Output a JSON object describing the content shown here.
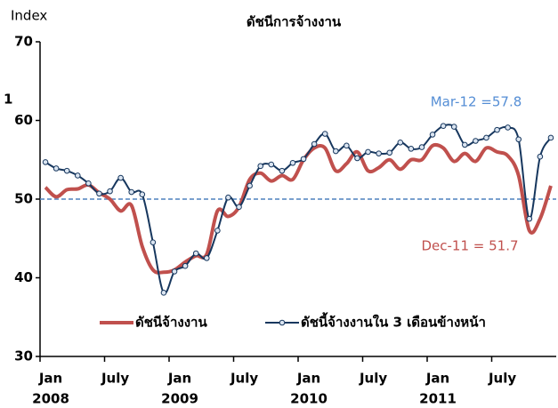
{
  "chart_data": {
    "type": "line",
    "title": "ดัชนีการจ้างงาน",
    "y_label": "Index",
    "side_text": "1",
    "categories": [
      "Jan",
      null,
      null,
      null,
      null,
      null,
      "July",
      null,
      null,
      null,
      null,
      null,
      "Jan",
      null,
      null,
      null,
      null,
      null,
      "July",
      null,
      null,
      null,
      null,
      null,
      "Jan",
      null,
      null,
      null,
      null,
      null,
      "July",
      null,
      null,
      null,
      null,
      null,
      "Jan",
      null,
      null,
      null,
      null,
      null,
      "July",
      null,
      null,
      null,
      null,
      null
    ],
    "years": [
      "2008",
      "2009",
      "2010",
      "2011"
    ],
    "series": [
      {
        "name": "ดัชนีจ้างงาน",
        "color": "#c0504d",
        "markers": false,
        "values": [
          51.5,
          50.3,
          51.2,
          51.3,
          51.8,
          50.8,
          50.0,
          48.5,
          49.2,
          44.0,
          41.0,
          40.7,
          41.0,
          42.0,
          42.8,
          43.0,
          48.5,
          47.8,
          49.0,
          52.5,
          53.3,
          52.3,
          53.0,
          52.5,
          55.0,
          56.5,
          56.5,
          53.6,
          54.5,
          56.0,
          53.6,
          54.0,
          55.0,
          53.8,
          55.0,
          55.0,
          56.8,
          56.5,
          54.8,
          55.8,
          54.8,
          56.5,
          56.0,
          55.5,
          53.0,
          46.0,
          47.5,
          51.7
        ]
      },
      {
        "name": "ดัชนี้จ้างงานใน 3 เดือนข้างหน้า",
        "color": "#17375e",
        "markers": true,
        "values": [
          54.7,
          53.9,
          53.6,
          53.0,
          52.0,
          50.7,
          51.0,
          52.7,
          50.9,
          50.6,
          44.5,
          38.1,
          40.8,
          41.5,
          43.1,
          42.5,
          46.0,
          50.2,
          49.0,
          51.7,
          54.2,
          54.4,
          53.6,
          54.6,
          55.1,
          57.0,
          58.3,
          56.1,
          56.8,
          55.2,
          56.0,
          55.8,
          55.9,
          57.2,
          56.4,
          56.6,
          58.2,
          59.3,
          59.2,
          56.9,
          57.4,
          57.8,
          58.8,
          59.1,
          57.6,
          47.5,
          55.4,
          57.8
        ]
      }
    ],
    "annotations": [
      {
        "text": "Mar-12 =57.8",
        "color": "#558ed5"
      },
      {
        "text": "Dec-11 = 51.7",
        "color": "#c0504d"
      }
    ],
    "reference_line": 50,
    "ylim": [
      30,
      70
    ],
    "yticks": [
      30,
      40,
      50,
      60,
      70
    ]
  }
}
